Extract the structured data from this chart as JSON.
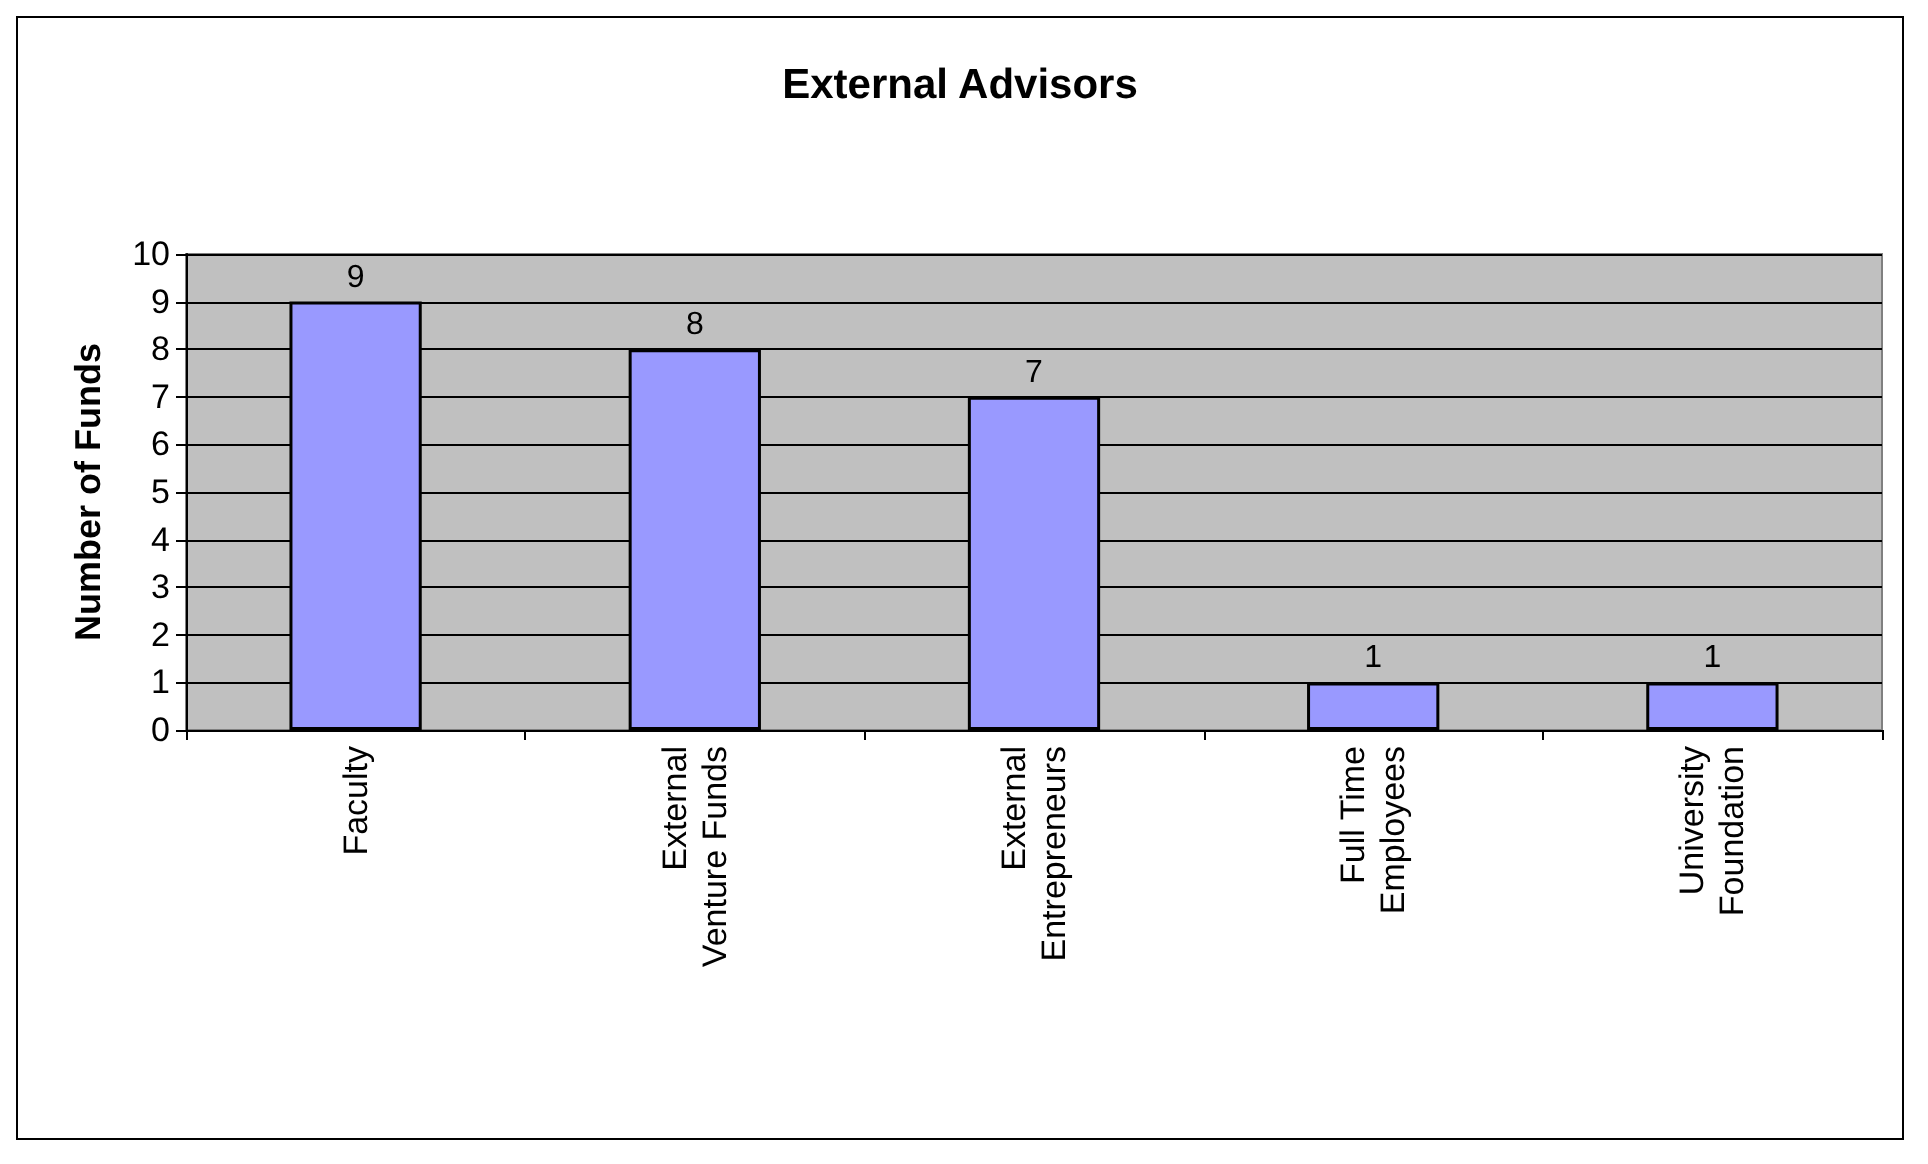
{
  "chart_data": {
    "type": "bar",
    "title": "External Advisors",
    "ylabel": "Number of Funds",
    "categories": [
      "Faculty",
      "External Venture Funds",
      "External Entrepreneurs",
      "Full Time Employees",
      "University Foundation"
    ],
    "values": [
      9,
      8,
      7,
      1,
      1
    ],
    "color": "#9999ff",
    "ylim": [
      0,
      10
    ],
    "yticks": [
      0,
      1,
      2,
      3,
      4,
      5,
      6,
      7,
      8,
      9,
      10
    ],
    "grid": "y",
    "data_labels": true
  }
}
